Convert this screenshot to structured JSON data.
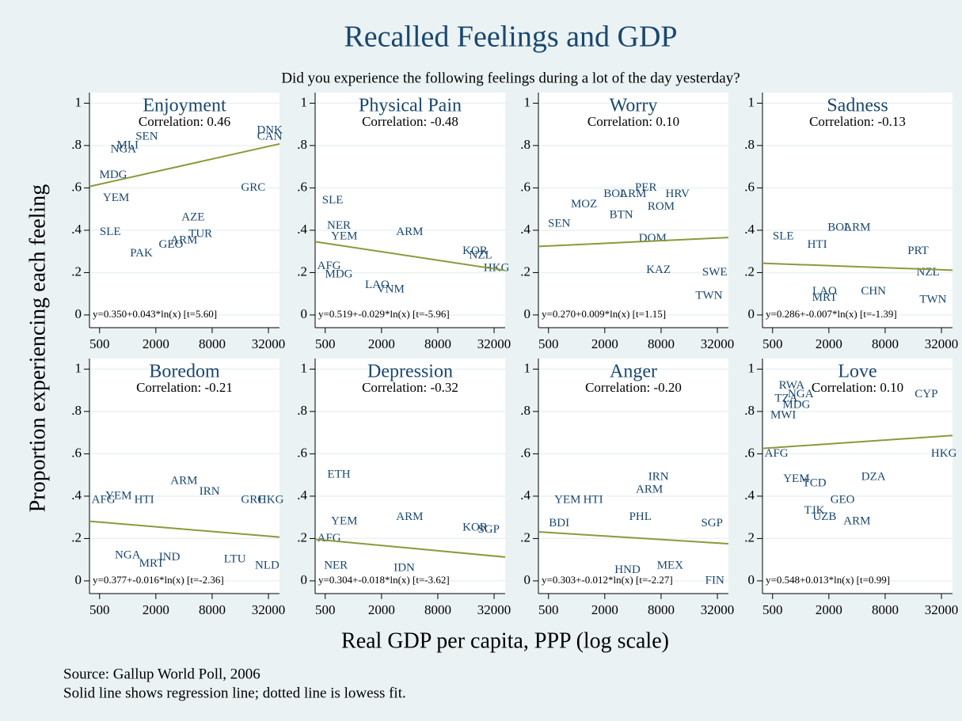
{
  "title": "Recalled Feelings and GDP",
  "subtitle": "Did you experience the following feelings during a lot of the day yesterday?",
  "y_label": "Proportion experiencing each feeling",
  "x_label": "Real GDP per capita, PPP (log scale)",
  "notes": [
    "Source: Gallup World Poll, 2006",
    "Solid line shows regression line; dotted line is lowess fit."
  ],
  "chart_data": [
    {
      "type": "scatter",
      "title": "Enjoyment",
      "annotation": "Correlation: 0.46",
      "color": "#1a476f",
      "log_x": true,
      "grid": true,
      "labels": [
        "SLE",
        "PAK",
        "GEO",
        "ARM",
        "TUR",
        "AZE",
        "GRC",
        "DNK",
        "YEM",
        "MDG",
        "NGA",
        "CAN",
        "SEN",
        "MLI"
      ],
      "x": [
        650,
        1400,
        2900,
        4000,
        6000,
        5000,
        22000,
        33000,
        750,
        700,
        900,
        33000,
        1600,
        1000
      ],
      "values": [
        0.39,
        0.29,
        0.33,
        0.35,
        0.38,
        0.46,
        0.6,
        0.87,
        0.55,
        0.66,
        0.78,
        0.84,
        0.84,
        0.8
      ],
      "fit": {
        "intercept": 0.35,
        "slope": 0.043,
        "label": "y=0.350+0.043*ln(x) [t=5.60]",
        "color": "#8a9a3c"
      },
      "xlim": [
        390,
        42000
      ],
      "ylim": [
        -0.06,
        1.05
      ],
      "xticks": [
        500,
        2000,
        8000,
        32000
      ],
      "yticks": [
        0,
        {
          "value": 0.2,
          "label": ".2"
        },
        {
          "value": 0.4,
          "label": ".4"
        },
        {
          "value": 0.6,
          "label": ".6"
        },
        {
          "value": 0.8,
          "label": ".8"
        },
        1
      ]
    },
    {
      "type": "scatter",
      "title": "Physical Pain",
      "annotation": "Correlation: -0.48",
      "color": "#1a476f",
      "log_x": true,
      "grid": true,
      "labels": [
        "SLE",
        "NER",
        "ARM",
        "MDG",
        "VNM",
        "LAO",
        "AFG",
        "NZL",
        "HKG",
        "KOR",
        "YEM"
      ],
      "x": [
        600,
        700,
        4000,
        700,
        2500,
        1800,
        550,
        23000,
        34000,
        20000,
        800
      ],
      "values": [
        0.54,
        0.42,
        0.39,
        0.19,
        0.12,
        0.14,
        0.23,
        0.28,
        0.22,
        0.3,
        0.37
      ],
      "fit": {
        "intercept": 0.519,
        "slope": -0.029,
        "label": "y=0.519+-0.029*ln(x) [t=-5.96]",
        "color": "#8a9a3c"
      },
      "xlim": [
        390,
        42000
      ],
      "ylim": [
        -0.06,
        1.05
      ],
      "xticks": [
        500,
        2000,
        8000,
        32000
      ],
      "yticks": [
        0,
        {
          "value": 0.2,
          "label": ".2"
        },
        {
          "value": 0.4,
          "label": ".4"
        },
        {
          "value": 0.6,
          "label": ".6"
        },
        {
          "value": 0.8,
          "label": ".8"
        },
        1
      ]
    },
    {
      "type": "scatter",
      "title": "Worry",
      "annotation": "Correlation: 0.10",
      "color": "#1a476f",
      "log_x": true,
      "grid": true,
      "labels": [
        "MOZ",
        "BOL",
        "PER",
        "ARM",
        "ROM",
        "TWN",
        "SWE",
        "KAZ",
        "SEN",
        "DOM",
        "HRV",
        "BTN"
      ],
      "x": [
        1200,
        2600,
        5500,
        4000,
        8000,
        26000,
        30000,
        7500,
        650,
        6500,
        12000,
        3000
      ],
      "values": [
        0.52,
        0.57,
        0.6,
        0.57,
        0.51,
        0.09,
        0.2,
        0.21,
        0.43,
        0.36,
        0.57,
        0.47
      ],
      "fit": {
        "intercept": 0.27,
        "slope": 0.009,
        "label": "y=0.270+0.009*ln(x) [t=1.15]",
        "color": "#8a9a3c"
      },
      "xlim": [
        390,
        42000
      ],
      "ylim": [
        -0.06,
        1.05
      ],
      "xticks": [
        500,
        2000,
        8000,
        32000
      ],
      "yticks": [
        0,
        {
          "value": 0.2,
          "label": ".2"
        },
        {
          "value": 0.4,
          "label": ".4"
        },
        {
          "value": 0.6,
          "label": ".6"
        },
        {
          "value": 0.8,
          "label": ".8"
        },
        1
      ]
    },
    {
      "type": "scatter",
      "title": "Sadness",
      "annotation": "Correlation: -0.13",
      "color": "#1a476f",
      "log_x": true,
      "grid": true,
      "labels": [
        "SLE",
        "BOL",
        "ARM",
        "HTI",
        "MRT",
        "LAO",
        "CHN",
        "TWN",
        "PRT",
        "NZL"
      ],
      "x": [
        650,
        2600,
        4000,
        1500,
        1800,
        1800,
        6000,
        26000,
        18000,
        23000
      ],
      "values": [
        0.37,
        0.41,
        0.41,
        0.33,
        0.08,
        0.11,
        0.11,
        0.07,
        0.3,
        0.2
      ],
      "fit": {
        "intercept": 0.286,
        "slope": -0.007,
        "label": "y=0.286+-0.007*ln(x) [t=-1.39]",
        "color": "#8a9a3c"
      },
      "xlim": [
        390,
        42000
      ],
      "ylim": [
        -0.06,
        1.05
      ],
      "xticks": [
        500,
        2000,
        8000,
        32000
      ],
      "yticks": [
        0,
        {
          "value": 0.2,
          "label": ".2"
        },
        {
          "value": 0.4,
          "label": ".4"
        },
        {
          "value": 0.6,
          "label": ".6"
        },
        {
          "value": 0.8,
          "label": ".8"
        },
        1
      ]
    },
    {
      "type": "scatter",
      "title": "Boredom",
      "annotation": "Correlation: -0.21",
      "color": "#1a476f",
      "log_x": true,
      "grid": true,
      "labels": [
        "YEM",
        "AFG",
        "HTI",
        "ARM",
        "IRN",
        "MRT",
        "NGA",
        "IND",
        "GRC",
        "HKG",
        "NLD",
        "LTU"
      ],
      "x": [
        800,
        550,
        1500,
        4000,
        7500,
        1800,
        1000,
        2800,
        22000,
        34000,
        31000,
        14000
      ],
      "values": [
        0.4,
        0.38,
        0.38,
        0.47,
        0.42,
        0.08,
        0.12,
        0.11,
        0.38,
        0.38,
        0.07,
        0.1
      ],
      "fit": {
        "intercept": 0.377,
        "slope": -0.016,
        "label": "y=0.377+-0.016*ln(x) [t=-2.36]",
        "color": "#8a9a3c"
      },
      "xlim": [
        390,
        42000
      ],
      "ylim": [
        -0.06,
        1.05
      ],
      "xticks": [
        500,
        2000,
        8000,
        32000
      ],
      "yticks": [
        0,
        {
          "value": 0.2,
          "label": ".2"
        },
        {
          "value": 0.4,
          "label": ".4"
        },
        {
          "value": 0.6,
          "label": ".6"
        },
        {
          "value": 0.8,
          "label": ".8"
        },
        1
      ]
    },
    {
      "type": "scatter",
      "title": "Depression",
      "annotation": "Correlation: -0.32",
      "color": "#1a476f",
      "log_x": true,
      "grid": true,
      "labels": [
        "ETH",
        "YEM",
        "ARM",
        "KOR",
        "NER",
        "IDN",
        "SGP",
        "AFG"
      ],
      "x": [
        700,
        800,
        4000,
        20000,
        650,
        3500,
        28000,
        550
      ],
      "values": [
        0.5,
        0.28,
        0.3,
        0.25,
        0.07,
        0.06,
        0.24,
        0.2
      ],
      "fit": {
        "intercept": 0.304,
        "slope": -0.018,
        "label": "y=0.304+-0.018*ln(x) [t=-3.62]",
        "color": "#8a9a3c"
      },
      "xlim": [
        390,
        42000
      ],
      "ylim": [
        -0.06,
        1.05
      ],
      "xticks": [
        500,
        2000,
        8000,
        32000
      ],
      "yticks": [
        0,
        {
          "value": 0.2,
          "label": ".2"
        },
        {
          "value": 0.4,
          "label": ".4"
        },
        {
          "value": 0.6,
          "label": ".6"
        },
        {
          "value": 0.8,
          "label": ".8"
        },
        1
      ]
    },
    {
      "type": "scatter",
      "title": "Anger",
      "annotation": "Correlation: -0.20",
      "color": "#1a476f",
      "log_x": true,
      "grid": true,
      "labels": [
        "IRN",
        "ARM",
        "YEM",
        "HTI",
        "PHL",
        "SGP",
        "HND",
        "FIN",
        "MEX",
        "BDI"
      ],
      "x": [
        7500,
        6000,
        800,
        1500,
        4800,
        28000,
        3500,
        30000,
        10000,
        650
      ],
      "values": [
        0.49,
        0.43,
        0.38,
        0.38,
        0.3,
        0.27,
        0.05,
        0.0,
        0.07,
        0.27
      ],
      "fit": {
        "intercept": 0.303,
        "slope": -0.012,
        "label": "y=0.303+-0.012*ln(x) [t=-2.27]",
        "color": "#8a9a3c"
      },
      "xlim": [
        390,
        42000
      ],
      "ylim": [
        -0.06,
        1.05
      ],
      "xticks": [
        500,
        2000,
        8000,
        32000
      ],
      "yticks": [
        0,
        {
          "value": 0.2,
          "label": ".2"
        },
        {
          "value": 0.4,
          "label": ".4"
        },
        {
          "value": 0.6,
          "label": ".6"
        },
        {
          "value": 0.8,
          "label": ".8"
        },
        1
      ]
    },
    {
      "type": "scatter",
      "title": "Love",
      "annotation": "Correlation: 0.10",
      "color": "#1a476f",
      "log_x": true,
      "grid": true,
      "labels": [
        "RWA",
        "TZA",
        "NGA",
        "MDG",
        "MWI",
        "AFG",
        "ARM",
        "GEO",
        "TJK",
        "UZB",
        "TCD",
        "YEM",
        "CYP",
        "HKG",
        "DZA"
      ],
      "x": [
        800,
        700,
        1000,
        900,
        650,
        550,
        4000,
        2800,
        1400,
        1800,
        1400,
        900,
        22000,
        34000,
        6000
      ],
      "values": [
        0.92,
        0.86,
        0.88,
        0.83,
        0.78,
        0.6,
        0.28,
        0.38,
        0.33,
        0.3,
        0.46,
        0.48,
        0.88,
        0.6,
        0.49
      ],
      "fit": {
        "intercept": 0.548,
        "slope": 0.013,
        "label": "y=0.548+0.013*ln(x) [t=0.99]",
        "color": "#8a9a3c"
      },
      "xlim": [
        390,
        42000
      ],
      "ylim": [
        -0.06,
        1.05
      ],
      "xticks": [
        500,
        2000,
        8000,
        32000
      ],
      "yticks": [
        0,
        {
          "value": 0.2,
          "label": ".2"
        },
        {
          "value": 0.4,
          "label": ".4"
        },
        {
          "value": 0.6,
          "label": ".6"
        },
        {
          "value": 0.8,
          "label": ".8"
        },
        1
      ]
    }
  ]
}
